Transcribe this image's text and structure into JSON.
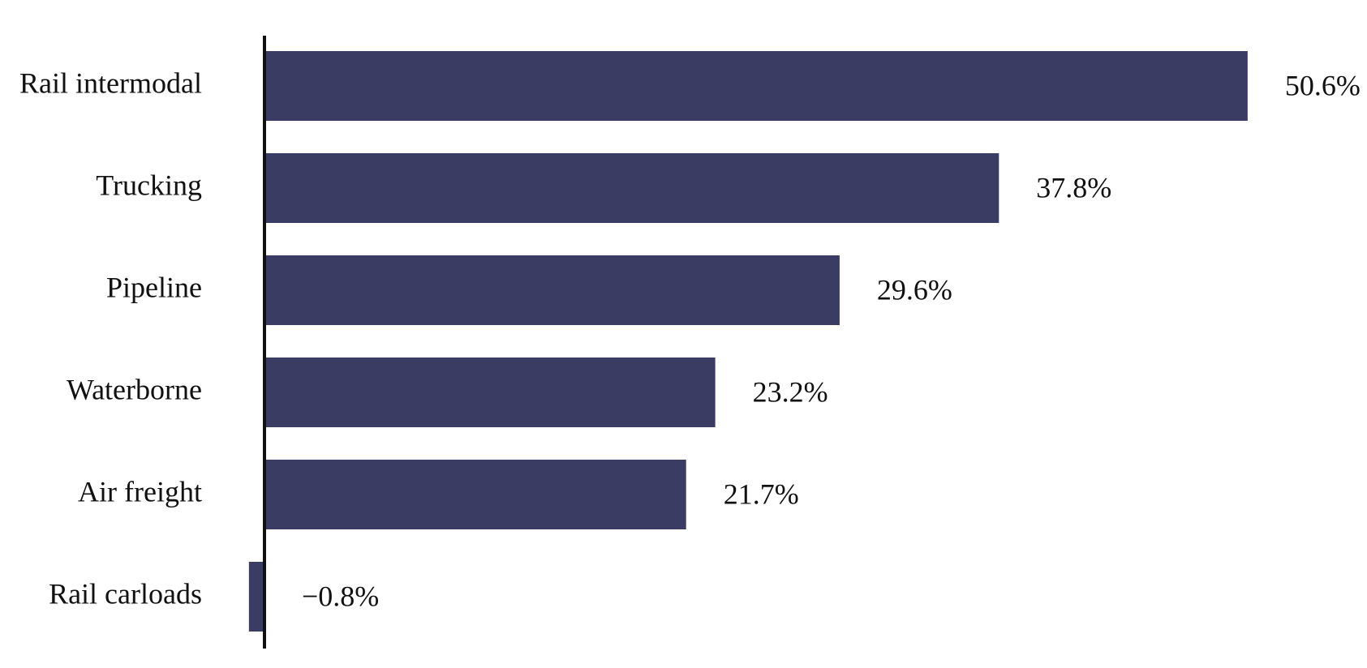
{
  "chart_data": {
    "type": "bar",
    "orientation": "horizontal",
    "categories": [
      "Rail intermodal",
      "Trucking",
      "Pipeline",
      "Waterborne",
      "Air freight",
      "Rail carloads"
    ],
    "values": [
      50.6,
      37.8,
      29.6,
      23.2,
      21.7,
      -0.8
    ],
    "value_labels": [
      "50.6%",
      "37.8%",
      "29.6%",
      "23.2%",
      "21.7%",
      "−0.8%"
    ],
    "title": "",
    "xlabel": "",
    "ylabel": "",
    "grid": false,
    "legend": "none",
    "bar_color": "#3b3c64",
    "axis_color": "#111111"
  }
}
